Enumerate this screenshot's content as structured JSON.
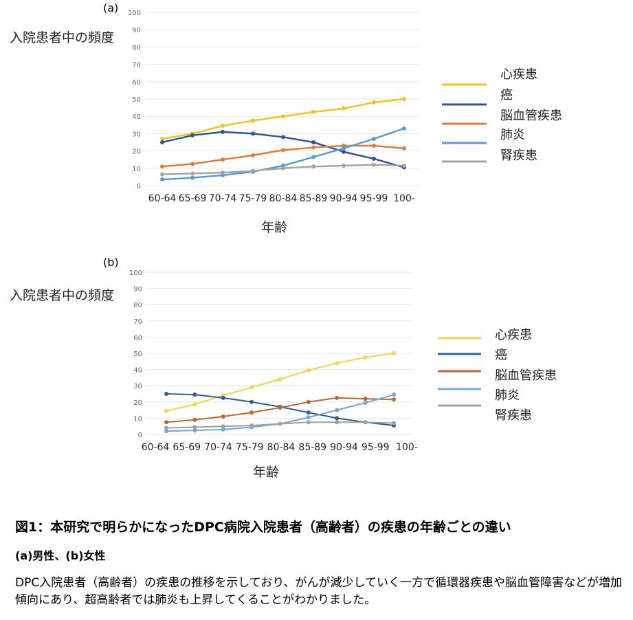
{
  "chart_data": [
    {
      "type": "line",
      "panel_label": "(a)",
      "ylabel": "入院患者中の頻度",
      "xlabel": "年齢",
      "ylim": [
        0,
        100
      ],
      "yticks": [
        0,
        10,
        20,
        30,
        40,
        50,
        60,
        70,
        80,
        90,
        100
      ],
      "grid": true,
      "legend": "right",
      "categories": [
        "60-64",
        "65-69",
        "70-74",
        "75-79",
        "80-84",
        "85-89",
        "90-94",
        "95-99",
        "100-"
      ],
      "series": [
        {
          "name": "心疾患",
          "color": "#f2c31b",
          "values": [
            27,
            30,
            34.5,
            37.5,
            40,
            42.5,
            44.5,
            48,
            50
          ]
        },
        {
          "name": "癌",
          "color": "#2f5597",
          "values": [
            25,
            29,
            31,
            30,
            28,
            25,
            19.5,
            15.5,
            10.5
          ]
        },
        {
          "name": "脳血管疾患",
          "color": "#e07b39",
          "values": [
            11,
            12.5,
            15,
            17.5,
            20.5,
            22,
            23,
            23,
            21.5
          ]
        },
        {
          "name": "肺炎",
          "color": "#5b9bd5",
          "values": [
            3.5,
            4.5,
            6,
            8,
            11.5,
            16.5,
            21.5,
            27,
            33
          ]
        },
        {
          "name": "腎疾患",
          "color": "#a5a5a5",
          "values": [
            6.5,
            7,
            7.5,
            8.5,
            10,
            11,
            11.5,
            12,
            11.5
          ]
        }
      ]
    },
    {
      "type": "line",
      "panel_label": "(b)",
      "ylabel": "入院患者中の頻度",
      "xlabel": "年齢",
      "ylim": [
        0,
        100
      ],
      "yticks": [
        0,
        10,
        20,
        30,
        40,
        50,
        60,
        70,
        80,
        90,
        100
      ],
      "grid": true,
      "legend": "right",
      "categories": [
        "60-64",
        "65-69",
        "70-74",
        "75-79",
        "80-84",
        "85-89",
        "90-94",
        "95-99",
        "100-"
      ],
      "series": [
        {
          "name": "心疾患",
          "color": "#f7d24a",
          "values": [
            14.5,
            18.5,
            24,
            29,
            34,
            39.5,
            44,
            47.5,
            50
          ]
        },
        {
          "name": "癌",
          "color": "#2f5f8f",
          "values": [
            25,
            24.5,
            22.5,
            20,
            17,
            13.5,
            10,
            7.5,
            5.5
          ]
        },
        {
          "name": "脳血管疾患",
          "color": "#c0652e",
          "values": [
            7.5,
            9,
            11,
            13.5,
            16.5,
            20,
            22.5,
            22,
            21.5
          ]
        },
        {
          "name": "肺炎",
          "color": "#6fa8dc",
          "values": [
            2,
            2.5,
            3,
            4.5,
            6.5,
            10.5,
            15,
            19.5,
            24.5
          ]
        },
        {
          "name": "腎疾患",
          "color": "#a0a0a0",
          "values": [
            4,
            4.5,
            5,
            5.5,
            6.5,
            7.5,
            7.5,
            7.5,
            7
          ]
        }
      ]
    }
  ],
  "caption": {
    "title": "図1：本研究で明らかになったDPC病院入院患者（高齢者）の疾患の年齢ごとの違い",
    "subtitle": "(a)男性、(b)女性",
    "body": "DPC入院患者（高齢者）の疾患の推移を示しており、がんが減少していく一方で循環器疾患や脳血管障害などが増加傾向にあり、超高齢者では肺炎も上昇してくることがわかりました。"
  }
}
